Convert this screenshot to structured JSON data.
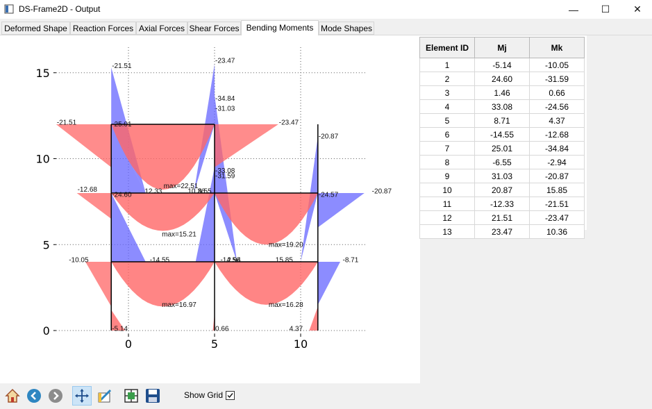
{
  "window": {
    "title": "DS-Frame2D - Output",
    "controls": {
      "minimize": "—",
      "maximize": "☐",
      "close": "✕"
    }
  },
  "tabs": [
    {
      "label": "Deformed Shape",
      "active": false
    },
    {
      "label": "Reaction Forces",
      "active": false
    },
    {
      "label": "Axial Forces",
      "active": false
    },
    {
      "label": "Shear Forces",
      "active": false
    },
    {
      "label": "Bending Moments",
      "active": true
    },
    {
      "label": "Mode Shapes",
      "active": false
    }
  ],
  "table": {
    "headers": [
      "Element ID",
      "Mj",
      "Mk"
    ],
    "rows": [
      [
        "1",
        "-5.14",
        "-10.05"
      ],
      [
        "2",
        "24.60",
        "-31.59"
      ],
      [
        "3",
        "1.46",
        "0.66"
      ],
      [
        "4",
        "33.08",
        "-24.56"
      ],
      [
        "5",
        "8.71",
        "4.37"
      ],
      [
        "6",
        "-14.55",
        "-12.68"
      ],
      [
        "7",
        "25.01",
        "-34.84"
      ],
      [
        "8",
        "-6.55",
        "-2.94"
      ],
      [
        "9",
        "31.03",
        "-20.87"
      ],
      [
        "10",
        "20.87",
        "15.85"
      ],
      [
        "11",
        "-12.33",
        "-21.51"
      ],
      [
        "12",
        "21.51",
        "-23.47"
      ],
      [
        "13",
        "23.47",
        "10.36"
      ]
    ]
  },
  "toolbar": {
    "show_grid_label": "Show Grid",
    "show_grid_checked": true,
    "tools": [
      "home-icon",
      "back-arrow-icon",
      "forward-arrow-icon",
      "pan-icon",
      "configure-subplots-icon",
      "zoom-fit-icon",
      "save-icon"
    ]
  },
  "chart_data": {
    "type": "bending-moment-diagram",
    "x_ticks": [
      "0",
      "5",
      "10"
    ],
    "y_ticks": [
      "0",
      "5",
      "10",
      "15"
    ],
    "xlim": [
      -4,
      15
    ],
    "ylim": [
      -1,
      17
    ],
    "grid": true,
    "colors": {
      "positive": "#ff6666",
      "negative": "#6666ff",
      "frame": "#000000"
    },
    "frame": {
      "columns_x": [
        -1,
        5,
        11
      ],
      "beam_levels_y": [
        4,
        8,
        12
      ],
      "ground_y": 0
    },
    "value_labels": [
      {
        "text": "-21.51",
        "x": -1,
        "y": 15.4
      },
      {
        "text": "-23.47",
        "x": 5,
        "y": 15.7
      },
      {
        "text": "-21.51",
        "x": -4.2,
        "y": 12.1
      },
      {
        "text": "-25.01",
        "x": -1,
        "y": 12.0
      },
      {
        "text": "-23.47",
        "x": 8.7,
        "y": 12.1
      },
      {
        "text": "-34.84",
        "x": 5,
        "y": 13.5
      },
      {
        "text": "-31.03",
        "x": 5,
        "y": 12.9
      },
      {
        "text": "-20.87",
        "x": 11,
        "y": 11.3
      },
      {
        "text": "max=22.51",
        "x": 2,
        "y": 8.4
      },
      {
        "text": "-33.08",
        "x": 5,
        "y": 9.3
      },
      {
        "text": "-31.59",
        "x": 5,
        "y": 9.0
      },
      {
        "text": "-12.68",
        "x": -3.0,
        "y": 8.2
      },
      {
        "text": "-24.60",
        "x": -1,
        "y": 7.9
      },
      {
        "text": "12.33",
        "x": 0.9,
        "y": 8.1
      },
      {
        "text": "10.36",
        "x": 3.4,
        "y": 8.1
      },
      {
        "text": "6.55",
        "x": 4,
        "y": 8.1
      },
      {
        "text": "-24.57",
        "x": 11,
        "y": 7.9
      },
      {
        "text": "-20.87",
        "x": 14.1,
        "y": 8.1
      },
      {
        "text": "max=15.21",
        "x": 1.9,
        "y": 5.6
      },
      {
        "text": "max=19.20",
        "x": 8.1,
        "y": 5.0
      },
      {
        "text": "-10.05",
        "x": -3.5,
        "y": 4.1
      },
      {
        "text": "-14.55",
        "x": 1.2,
        "y": 4.1
      },
      {
        "text": "-14.56",
        "x": 5.3,
        "y": 4.1
      },
      {
        "text": "2.94",
        "x": 5.7,
        "y": 4.1
      },
      {
        "text": "15.85",
        "x": 8.5,
        "y": 4.1
      },
      {
        "text": "-8.71",
        "x": 12.4,
        "y": 4.1
      },
      {
        "text": "max=16.97",
        "x": 1.9,
        "y": 1.5
      },
      {
        "text": "max=16.28",
        "x": 8.1,
        "y": 1.5
      },
      {
        "text": "-5.14",
        "x": -1,
        "y": 0.1
      },
      {
        "text": "0.66",
        "x": 5,
        "y": 0.1
      },
      {
        "text": "4.37",
        "x": 9.3,
        "y": 0.1
      }
    ]
  }
}
